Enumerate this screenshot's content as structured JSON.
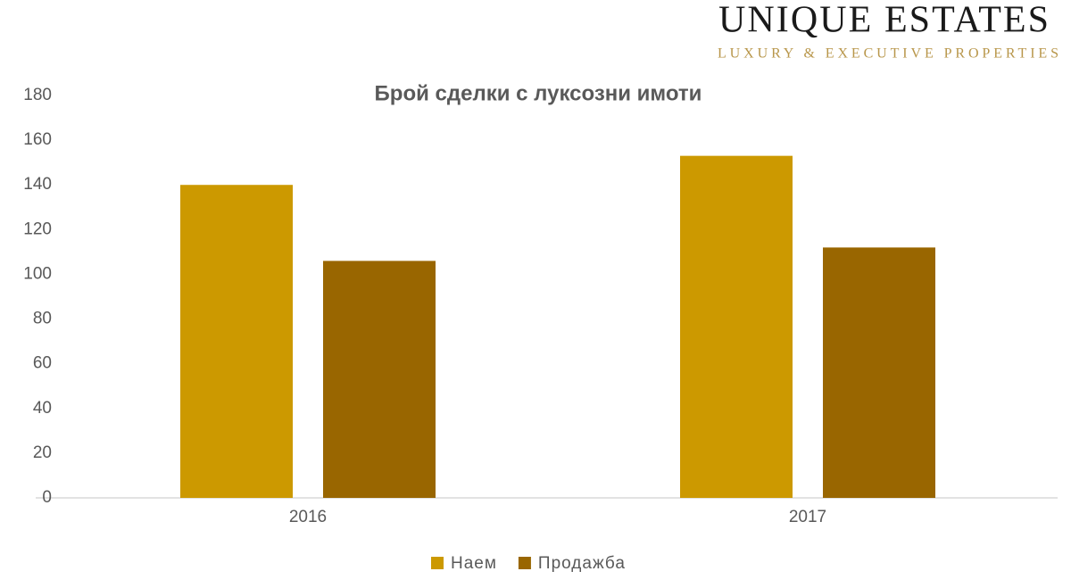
{
  "logo": {
    "name": "UNIQUE ESTATES",
    "tagline": "LUXURY & EXECUTIVE PROPERTIES"
  },
  "chart_data": {
    "type": "bar",
    "title": "Брой сделки с луксозни имоти",
    "categories": [
      "2016",
      "2017"
    ],
    "series": [
      {
        "name": "Наем",
        "color": "#cc9900",
        "values": [
          140,
          153
        ]
      },
      {
        "name": "Продажба",
        "color": "#996600",
        "values": [
          106,
          112
        ]
      }
    ],
    "ylim": [
      0,
      180
    ],
    "yticks": [
      0,
      20,
      40,
      60,
      80,
      100,
      120,
      140,
      160,
      180
    ],
    "grid": false,
    "legend": "bottom"
  }
}
